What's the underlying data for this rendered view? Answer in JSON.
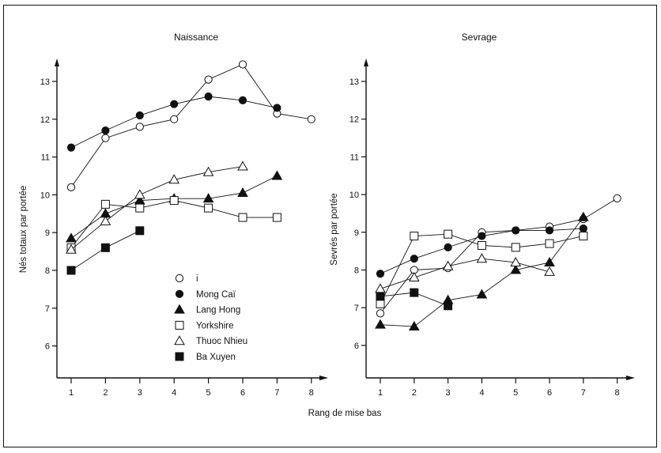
{
  "chart_data": [
    {
      "type": "line",
      "title": "Naissance",
      "xlabel": "Rang de  mise bas",
      "ylabel": "Nés totaux par portée",
      "x": [
        1,
        2,
        3,
        4,
        5,
        6,
        7,
        8
      ],
      "x_ticks": [
        "1",
        "2",
        "3",
        "4",
        "5",
        "6",
        "7",
        "8"
      ],
      "y_ticks": [
        "6",
        "7",
        "8",
        "9",
        "10",
        "11",
        "12",
        "13"
      ],
      "xlim": [
        0.55,
        8.6
      ],
      "ylim": [
        5.15,
        13.6
      ],
      "grid": false,
      "legend": "bottom-center",
      "series": [
        {
          "name": "i",
          "marker": "open-circle",
          "x": [
            1,
            2,
            3,
            4,
            5,
            6,
            7,
            8
          ],
          "values": [
            10.2,
            11.5,
            11.8,
            12.0,
            13.05,
            13.45,
            12.15,
            12.0
          ]
        },
        {
          "name": "Mong Caï",
          "marker": "filled-circle",
          "x": [
            1,
            2,
            3,
            4,
            5,
            6,
            7
          ],
          "values": [
            11.25,
            11.7,
            12.1,
            12.4,
            12.6,
            12.5,
            12.3
          ]
        },
        {
          "name": "Lang Hong",
          "marker": "filled-triangle",
          "x": [
            1,
            2,
            3,
            4,
            5,
            6,
            7
          ],
          "values": [
            8.85,
            9.5,
            9.85,
            9.9,
            9.9,
            10.05,
            10.5
          ]
        },
        {
          "name": "Yorkshire",
          "marker": "open-square",
          "x": [
            1,
            2,
            3,
            4,
            5,
            6,
            7
          ],
          "values": [
            8.6,
            9.75,
            9.65,
            9.85,
            9.65,
            9.4,
            9.4
          ]
        },
        {
          "name": "Thuoc  Nhieu",
          "marker": "open-triangle",
          "x": [
            1,
            2,
            3,
            4,
            5,
            6
          ],
          "values": [
            8.55,
            9.3,
            10.0,
            10.4,
            10.6,
            10.75
          ]
        },
        {
          "name": "Ba Xuyen",
          "marker": "filled-square",
          "x": [
            1,
            2,
            3
          ],
          "values": [
            8.0,
            8.6,
            9.05
          ]
        }
      ]
    },
    {
      "type": "line",
      "title": "Sevrage",
      "xlabel": "Rang de  mise bas",
      "ylabel": "Sevrés par portée",
      "x": [
        1,
        2,
        3,
        4,
        5,
        6,
        7,
        8
      ],
      "x_ticks": [
        "1",
        "2",
        "3",
        "4",
        "5",
        "6",
        "7",
        "8"
      ],
      "y_ticks": [
        "6",
        "7",
        "8",
        "9",
        "10",
        "11",
        "12",
        "13"
      ],
      "xlim": [
        0.6,
        8.6
      ],
      "ylim": [
        5.15,
        13.6
      ],
      "grid": false,
      "series": [
        {
          "name": "i",
          "marker": "open-circle",
          "x": [
            1,
            2,
            3,
            4,
            5,
            6,
            7,
            8
          ],
          "values": [
            6.85,
            8.0,
            8.05,
            9.0,
            9.05,
            9.15,
            9.35,
            9.9
          ]
        },
        {
          "name": "Mong Caï",
          "marker": "filled-circle",
          "x": [
            1,
            2,
            3,
            4,
            5,
            6,
            7
          ],
          "values": [
            7.9,
            8.3,
            8.6,
            8.9,
            9.05,
            9.05,
            9.1
          ]
        },
        {
          "name": "Lang Hong",
          "marker": "filled-triangle",
          "x": [
            1,
            2,
            3,
            4,
            5,
            6,
            7
          ],
          "values": [
            6.55,
            6.5,
            7.2,
            7.35,
            8.0,
            8.2,
            9.4
          ]
        },
        {
          "name": "Yorkshire",
          "marker": "open-square",
          "x": [
            1,
            2,
            3,
            4,
            5,
            6,
            7
          ],
          "values": [
            7.1,
            8.9,
            8.95,
            8.65,
            8.6,
            8.7,
            8.9
          ]
        },
        {
          "name": "Thuoc  Nhieu",
          "marker": "open-triangle",
          "x": [
            1,
            2,
            3,
            4,
            5,
            6
          ],
          "values": [
            7.5,
            7.8,
            8.1,
            8.3,
            8.2,
            7.95
          ]
        },
        {
          "name": "Ba Xuyen",
          "marker": "filled-square",
          "x": [
            1,
            2,
            3
          ],
          "values": [
            7.3,
            7.4,
            7.05
          ]
        }
      ]
    }
  ],
  "shared_xlabel": "Rang de  mise bas",
  "colors": {
    "ink": "#111111",
    "background": "#ffffff"
  }
}
